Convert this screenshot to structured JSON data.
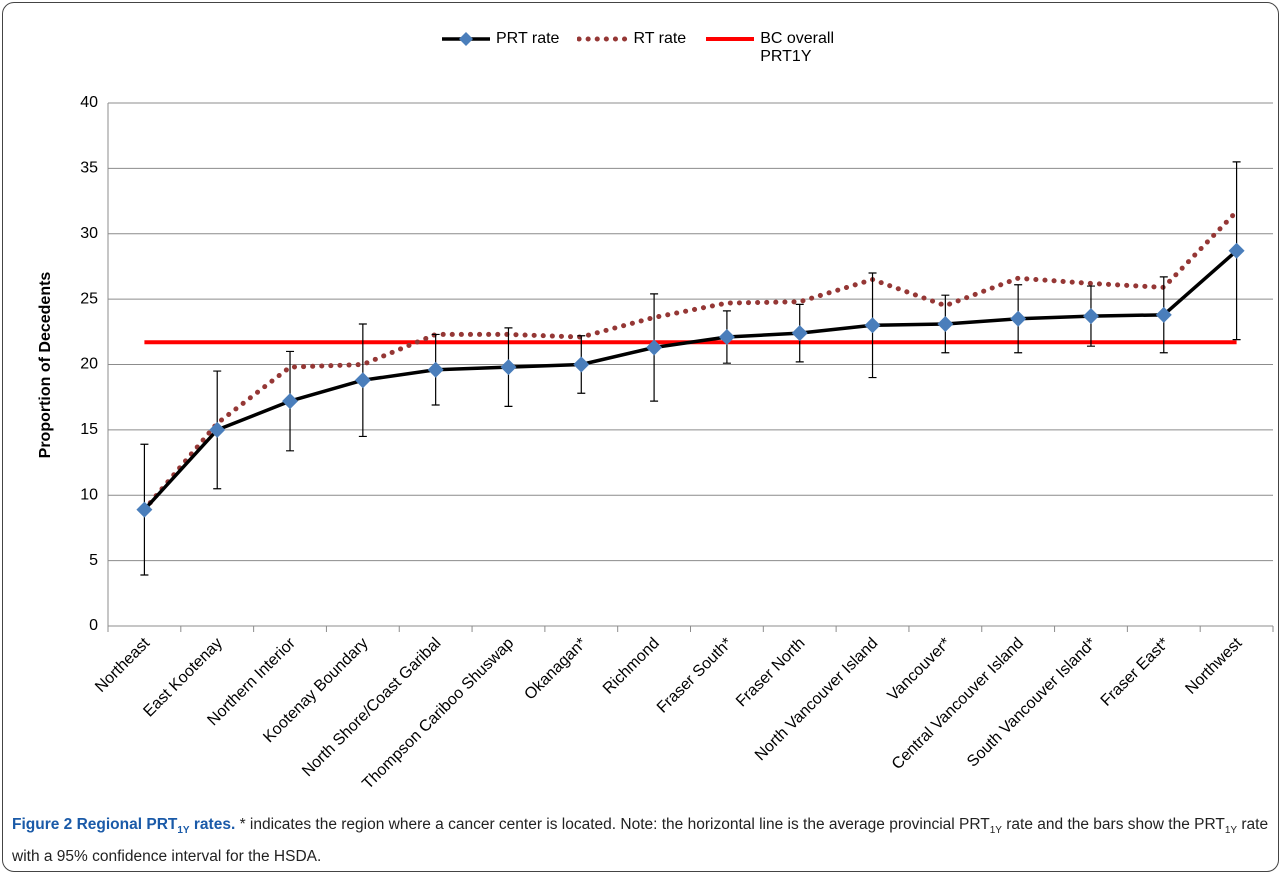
{
  "chart_data": {
    "type": "line",
    "ylabel": "Proportion of Decedents",
    "categories": [
      "Northeast",
      "East Kootenay",
      "Northern Interior",
      "Kootenay Boundary",
      "North Shore/Coast Garibal",
      "Thompson Cariboo Shuswap",
      "Okanagan*",
      "Richmond",
      "Fraser South*",
      "Fraser North",
      "North Vancouver Island",
      "Vancouver*",
      "Central Vancouver Island",
      "South Vancouver Island*",
      "Fraser East*",
      "Northwest"
    ],
    "series": [
      {
        "name": "PRT rate",
        "color": "#000000",
        "line_style": "solid",
        "marker": "diamond",
        "marker_color": "#4a7ebb",
        "values": [
          8.9,
          15.0,
          17.2,
          18.8,
          19.6,
          19.8,
          20.0,
          21.3,
          22.1,
          22.4,
          23.0,
          23.1,
          23.5,
          23.7,
          23.8,
          28.7
        ],
        "errors": [
          5.0,
          4.5,
          3.8,
          4.3,
          2.7,
          3.0,
          2.2,
          4.1,
          2.0,
          2.2,
          4.0,
          2.2,
          2.6,
          2.3,
          2.9,
          6.8
        ]
      },
      {
        "name": "RT rate",
        "color": "#953735",
        "line_style": "dotted",
        "values": [
          8.9,
          15.5,
          19.8,
          20.0,
          22.3,
          22.3,
          22.1,
          23.6,
          24.7,
          24.8,
          26.5,
          24.5,
          26.6,
          26.2,
          25.9,
          31.7
        ]
      }
    ],
    "reference_line": {
      "name": "BC overall PRT1Y",
      "value": 21.7,
      "color": "#ff0000"
    },
    "ylim": [
      0,
      40
    ],
    "yticks": [
      0,
      5,
      10,
      15,
      20,
      25,
      30,
      35,
      40
    ],
    "grid": true,
    "legend": "top"
  },
  "caption": [
    "Figure 2 Regional PRT",
    "1Y",
    " rates.",
    " * indicates the region where a cancer center is located. Note: the horizontal line is the average provincial PRT",
    "1Y",
    " rate and the bars show the PRT",
    "1Y",
    " rate with a 95% confidence interval for the HSDA."
  ]
}
